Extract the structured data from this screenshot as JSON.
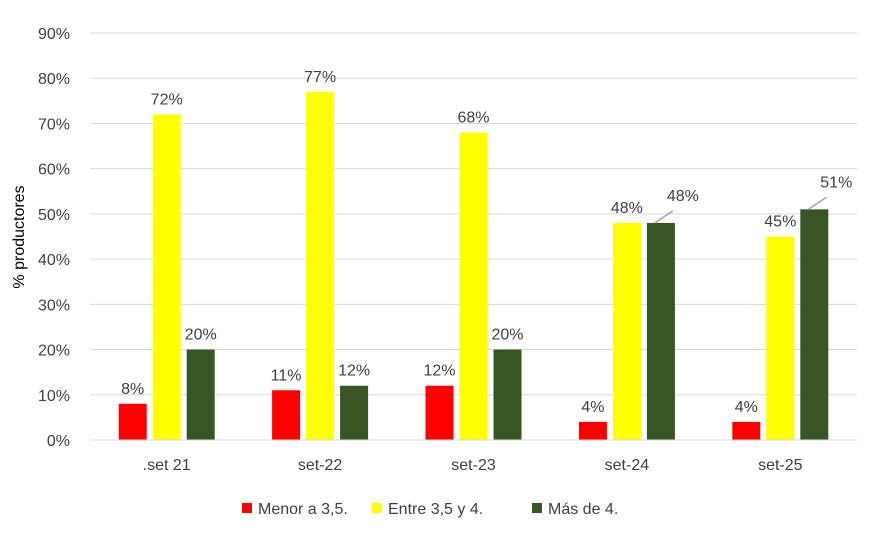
{
  "chart_data": {
    "type": "bar",
    "title": "",
    "xlabel": "",
    "ylabel": "% productores",
    "ylim": [
      0,
      90
    ],
    "yticks": [
      0,
      10,
      20,
      30,
      40,
      50,
      60,
      70,
      80,
      90
    ],
    "ytick_labels": [
      "0%",
      "10%",
      "20%",
      "30%",
      "40%",
      "50%",
      "60%",
      "70%",
      "80%",
      "90%"
    ],
    "grid": true,
    "legend_position": "bottom",
    "categories": [
      ".set 21",
      "set-22",
      "set-23",
      "set-24",
      "set-25"
    ],
    "series": [
      {
        "name": "Menor a 3,5.",
        "color": "#ff0000",
        "values": [
          8,
          11,
          12,
          4,
          4
        ],
        "labels": [
          "8%",
          "11%",
          "12%",
          "4%",
          "4%"
        ]
      },
      {
        "name": "Entre 3,5 y 4.",
        "color": "#ffff00",
        "values": [
          72,
          77,
          68,
          48,
          45
        ],
        "labels": [
          "72%",
          "77%",
          "68%",
          "48%",
          "45%"
        ]
      },
      {
        "name": "Más de 4.",
        "color": "#375623",
        "values": [
          20,
          12,
          20,
          48,
          51
        ],
        "labels": [
          "20%",
          "12%",
          "20%",
          "48%",
          "51%"
        ]
      }
    ]
  }
}
